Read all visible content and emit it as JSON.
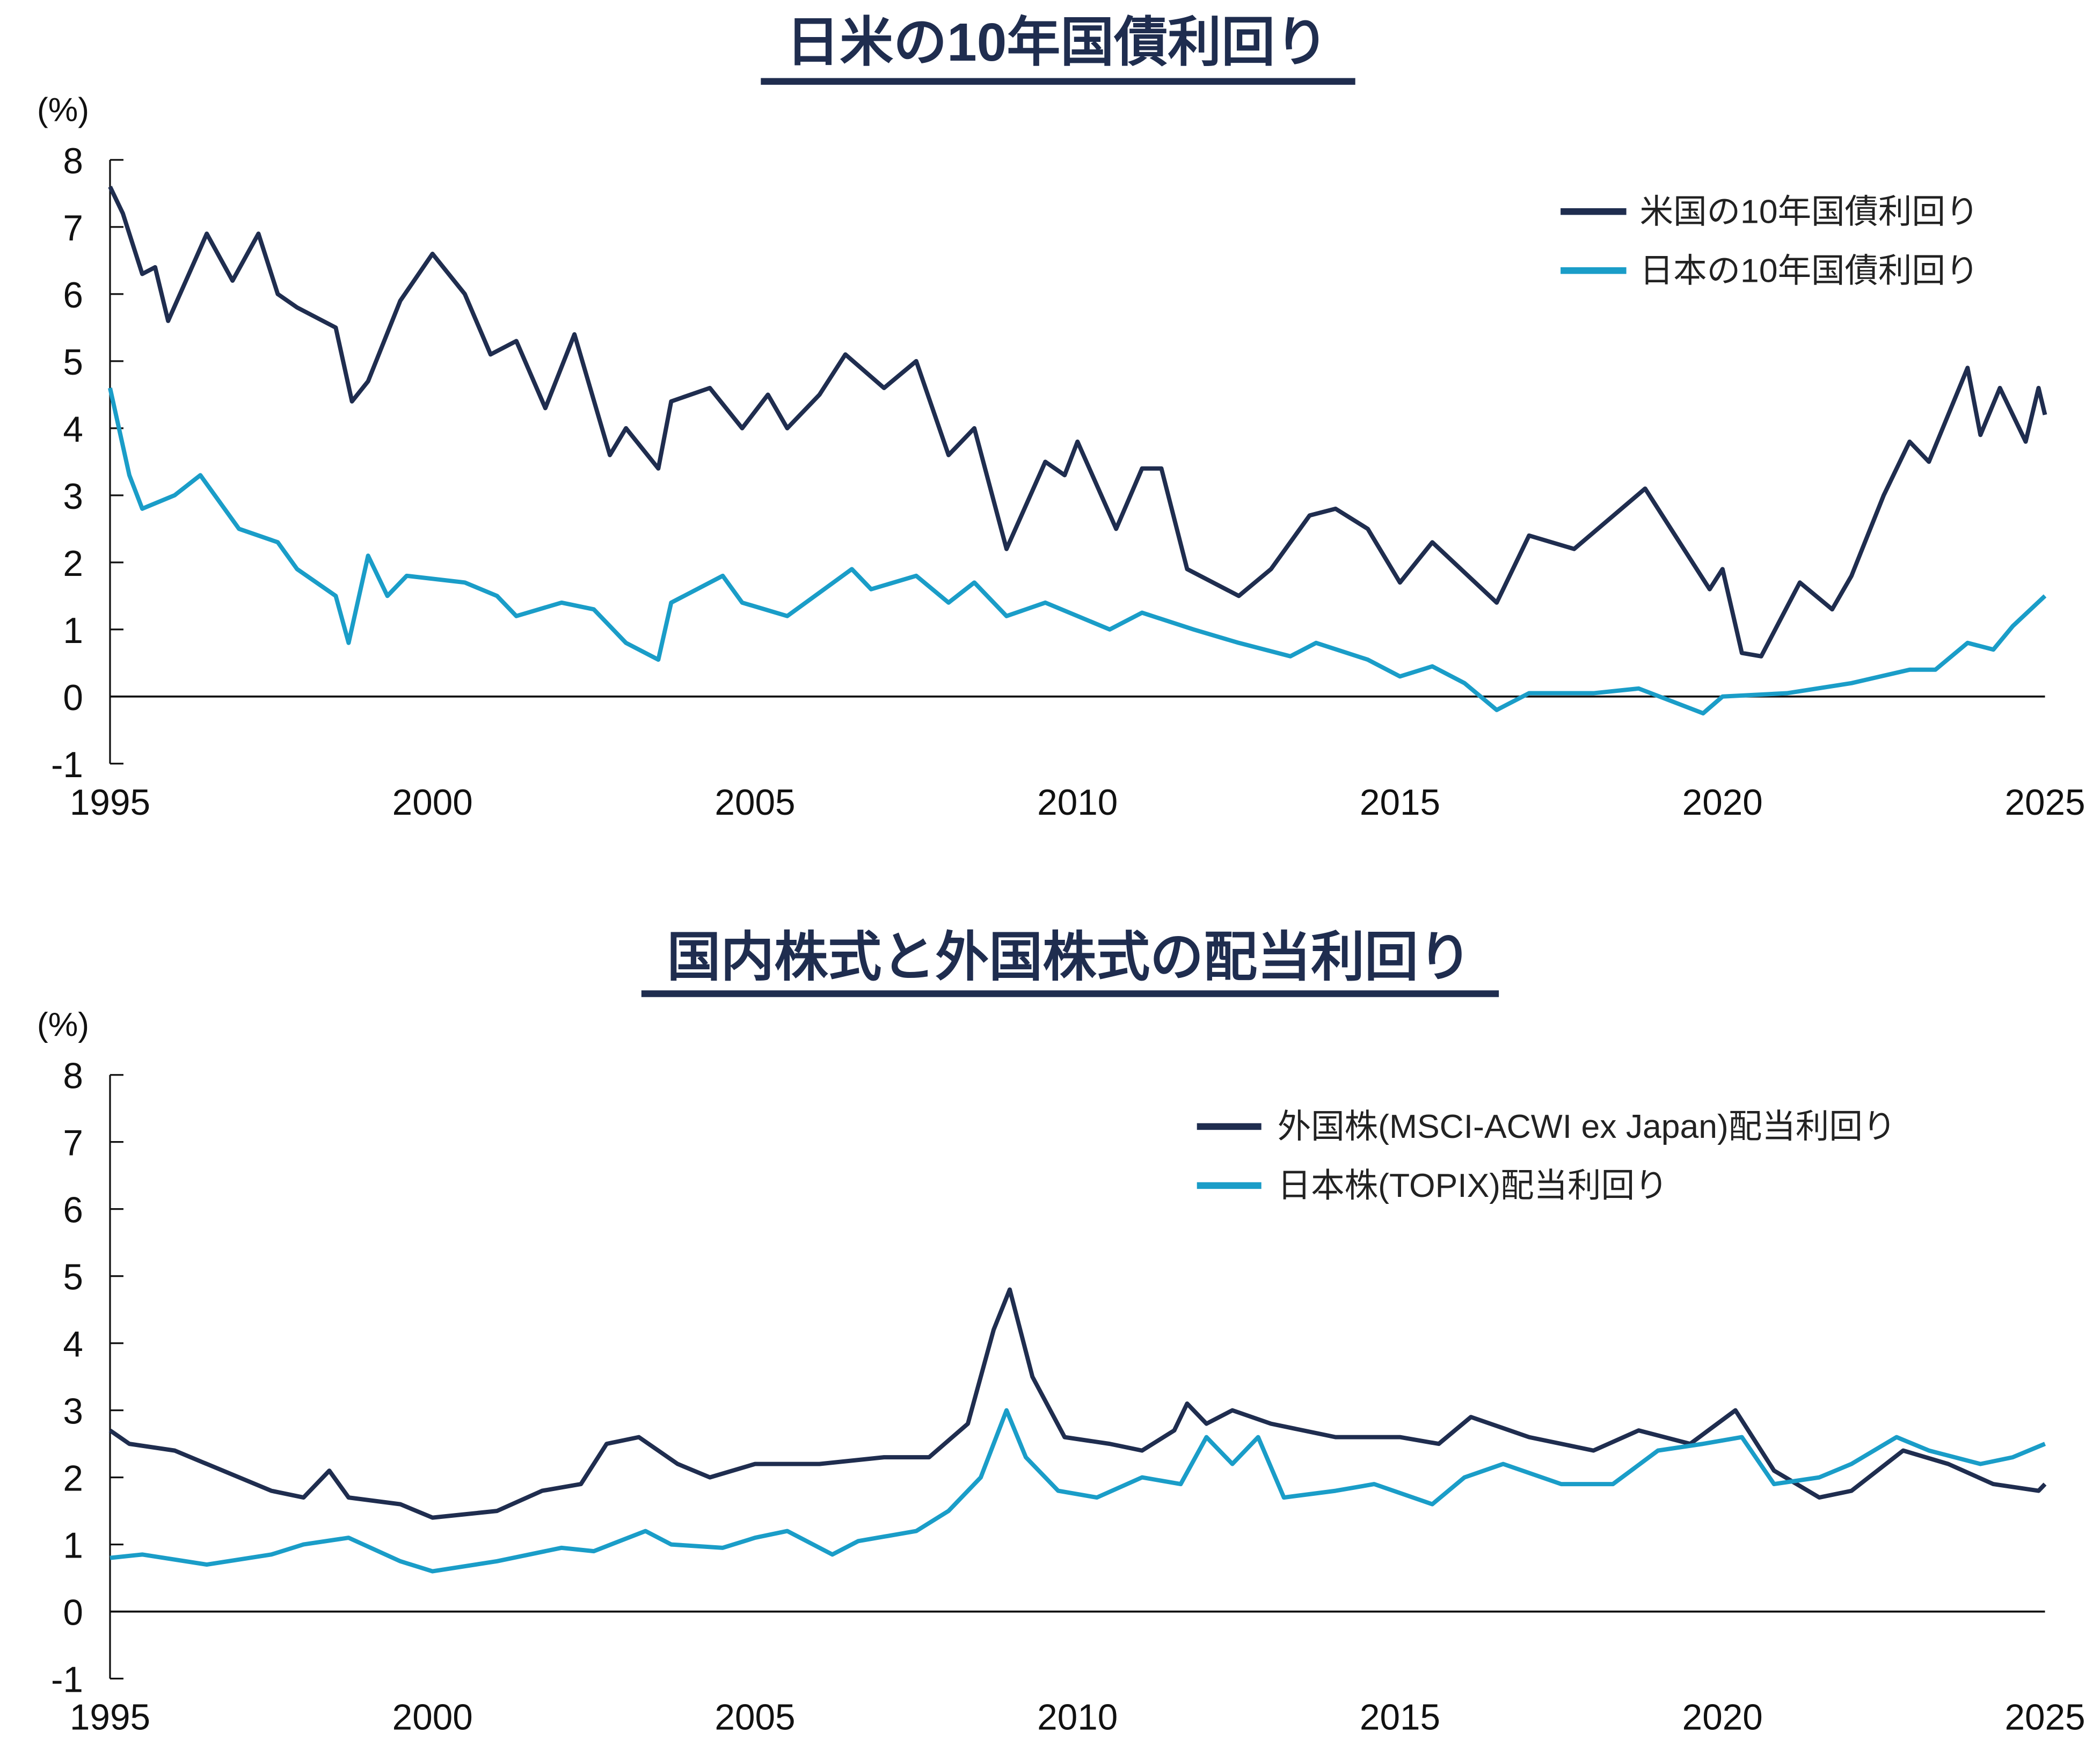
{
  "colors": {
    "us_or_foreign": "#1f2d4f",
    "japan": "#1a9dc8",
    "axis": "#111111"
  },
  "chart_data": [
    {
      "type": "line",
      "title": "日米の10年国債利回り",
      "ylabel": "(%)",
      "xlim": [
        1995,
        2025
      ],
      "ylim": [
        -1,
        8
      ],
      "xticks": [
        "1995",
        "2000",
        "2005",
        "2010",
        "2015",
        "2020",
        "2025"
      ],
      "yticks": [
        "8",
        "7",
        "6",
        "5",
        "4",
        "3",
        "2",
        "1",
        "0",
        "-1"
      ],
      "legend_position": "top-right",
      "series": [
        {
          "name": "米国の10年国債利回り",
          "color": "#1f2d4f",
          "points": [
            [
              1995.0,
              7.6
            ],
            [
              1995.2,
              7.2
            ],
            [
              1995.5,
              6.3
            ],
            [
              1995.7,
              6.4
            ],
            [
              1995.9,
              5.6
            ],
            [
              1996.5,
              6.9
            ],
            [
              1996.9,
              6.2
            ],
            [
              1997.3,
              6.9
            ],
            [
              1997.6,
              6.0
            ],
            [
              1997.9,
              5.8
            ],
            [
              1998.5,
              5.5
            ],
            [
              1998.75,
              4.4
            ],
            [
              1999.0,
              4.7
            ],
            [
              1999.5,
              5.9
            ],
            [
              2000.0,
              6.6
            ],
            [
              2000.5,
              6.0
            ],
            [
              2000.9,
              5.1
            ],
            [
              2001.3,
              5.3
            ],
            [
              2001.75,
              4.3
            ],
            [
              2002.2,
              5.4
            ],
            [
              2002.75,
              3.6
            ],
            [
              2003.0,
              4.0
            ],
            [
              2003.5,
              3.4
            ],
            [
              2003.7,
              4.4
            ],
            [
              2004.3,
              4.6
            ],
            [
              2004.8,
              4.0
            ],
            [
              2005.2,
              4.5
            ],
            [
              2005.5,
              4.0
            ],
            [
              2006.0,
              4.5
            ],
            [
              2006.4,
              5.1
            ],
            [
              2007.0,
              4.6
            ],
            [
              2007.5,
              5.0
            ],
            [
              2008.0,
              3.6
            ],
            [
              2008.4,
              4.0
            ],
            [
              2008.9,
              2.2
            ],
            [
              2009.5,
              3.5
            ],
            [
              2009.8,
              3.3
            ],
            [
              2010.0,
              3.8
            ],
            [
              2010.6,
              2.5
            ],
            [
              2011.0,
              3.4
            ],
            [
              2011.3,
              3.4
            ],
            [
              2011.7,
              1.9
            ],
            [
              2012.5,
              1.5
            ],
            [
              2013.0,
              1.9
            ],
            [
              2013.6,
              2.7
            ],
            [
              2014.0,
              2.8
            ],
            [
              2014.5,
              2.5
            ],
            [
              2015.0,
              1.7
            ],
            [
              2015.5,
              2.3
            ],
            [
              2016.5,
              1.4
            ],
            [
              2017.0,
              2.4
            ],
            [
              2017.7,
              2.2
            ],
            [
              2018.8,
              3.1
            ],
            [
              2019.8,
              1.6
            ],
            [
              2020.0,
              1.9
            ],
            [
              2020.3,
              0.65
            ],
            [
              2020.6,
              0.6
            ],
            [
              2021.2,
              1.7
            ],
            [
              2021.7,
              1.3
            ],
            [
              2022.0,
              1.8
            ],
            [
              2022.5,
              3.0
            ],
            [
              2022.9,
              3.8
            ],
            [
              2023.2,
              3.5
            ],
            [
              2023.8,
              4.9
            ],
            [
              2024.0,
              3.9
            ],
            [
              2024.3,
              4.6
            ],
            [
              2024.7,
              3.8
            ],
            [
              2024.9,
              4.6
            ],
            [
              2025.0,
              4.2
            ]
          ]
        },
        {
          "name": "日本の10年国債利回り",
          "color": "#1a9dc8",
          "points": [
            [
              1995.0,
              4.6
            ],
            [
              1995.3,
              3.3
            ],
            [
              1995.5,
              2.8
            ],
            [
              1996.0,
              3.0
            ],
            [
              1996.4,
              3.3
            ],
            [
              1997.0,
              2.5
            ],
            [
              1997.6,
              2.3
            ],
            [
              1997.9,
              1.9
            ],
            [
              1998.5,
              1.5
            ],
            [
              1998.7,
              0.8
            ],
            [
              1999.0,
              2.1
            ],
            [
              1999.3,
              1.5
            ],
            [
              1999.6,
              1.8
            ],
            [
              2000.5,
              1.7
            ],
            [
              2001.0,
              1.5
            ],
            [
              2001.3,
              1.2
            ],
            [
              2002.0,
              1.4
            ],
            [
              2002.5,
              1.3
            ],
            [
              2003.0,
              0.8
            ],
            [
              2003.5,
              0.55
            ],
            [
              2003.7,
              1.4
            ],
            [
              2004.5,
              1.8
            ],
            [
              2004.8,
              1.4
            ],
            [
              2005.5,
              1.2
            ],
            [
              2006.5,
              1.9
            ],
            [
              2006.8,
              1.6
            ],
            [
              2007.5,
              1.8
            ],
            [
              2008.0,
              1.4
            ],
            [
              2008.4,
              1.7
            ],
            [
              2008.9,
              1.2
            ],
            [
              2009.5,
              1.4
            ],
            [
              2010.5,
              1.0
            ],
            [
              2011.0,
              1.25
            ],
            [
              2011.8,
              1.0
            ],
            [
              2012.5,
              0.8
            ],
            [
              2013.3,
              0.6
            ],
            [
              2013.7,
              0.8
            ],
            [
              2014.5,
              0.55
            ],
            [
              2015.0,
              0.3
            ],
            [
              2015.5,
              0.45
            ],
            [
              2016.0,
              0.2
            ],
            [
              2016.5,
              -0.2
            ],
            [
              2017.0,
              0.05
            ],
            [
              2018.0,
              0.05
            ],
            [
              2018.7,
              0.12
            ],
            [
              2019.7,
              -0.25
            ],
            [
              2020.0,
              0.0
            ],
            [
              2021.0,
              0.05
            ],
            [
              2022.0,
              0.2
            ],
            [
              2022.9,
              0.4
            ],
            [
              2023.3,
              0.4
            ],
            [
              2023.8,
              0.8
            ],
            [
              2024.2,
              0.7
            ],
            [
              2024.5,
              1.05
            ],
            [
              2025.0,
              1.5
            ]
          ]
        }
      ]
    },
    {
      "type": "line",
      "title": "国内株式と外国株式の配当利回り",
      "ylabel": "(%)",
      "xlim": [
        1995,
        2025
      ],
      "ylim": [
        -1,
        8
      ],
      "xticks": [
        "1995",
        "2000",
        "2005",
        "2010",
        "2015",
        "2020",
        "2025"
      ],
      "yticks": [
        "8",
        "7",
        "6",
        "5",
        "4",
        "3",
        "2",
        "1",
        "0",
        "-1"
      ],
      "legend_position": "top-right",
      "series": [
        {
          "name": "外国株(MSCI-ACWI ex Japan)配当利回り",
          "color": "#1f2d4f",
          "points": [
            [
              1995.0,
              2.7
            ],
            [
              1995.3,
              2.5
            ],
            [
              1996.0,
              2.4
            ],
            [
              1996.5,
              2.2
            ],
            [
              1997.5,
              1.8
            ],
            [
              1998.0,
              1.7
            ],
            [
              1998.4,
              2.1
            ],
            [
              1998.7,
              1.7
            ],
            [
              1999.5,
              1.6
            ],
            [
              2000.0,
              1.4
            ],
            [
              2000.5,
              1.45
            ],
            [
              2001.0,
              1.5
            ],
            [
              2001.7,
              1.8
            ],
            [
              2002.3,
              1.9
            ],
            [
              2002.7,
              2.5
            ],
            [
              2003.2,
              2.6
            ],
            [
              2003.8,
              2.2
            ],
            [
              2004.3,
              2.0
            ],
            [
              2005.0,
              2.2
            ],
            [
              2006.0,
              2.2
            ],
            [
              2007.0,
              2.3
            ],
            [
              2007.7,
              2.3
            ],
            [
              2008.3,
              2.8
            ],
            [
              2008.7,
              4.2
            ],
            [
              2008.95,
              4.8
            ],
            [
              2009.3,
              3.5
            ],
            [
              2009.8,
              2.6
            ],
            [
              2010.5,
              2.5
            ],
            [
              2011.0,
              2.4
            ],
            [
              2011.5,
              2.7
            ],
            [
              2011.7,
              3.1
            ],
            [
              2012.0,
              2.8
            ],
            [
              2012.4,
              3.0
            ],
            [
              2013.0,
              2.8
            ],
            [
              2014.0,
              2.6
            ],
            [
              2015.0,
              2.6
            ],
            [
              2015.6,
              2.5
            ],
            [
              2016.1,
              2.9
            ],
            [
              2017.0,
              2.6
            ],
            [
              2018.0,
              2.4
            ],
            [
              2018.7,
              2.7
            ],
            [
              2019.5,
              2.5
            ],
            [
              2020.2,
              3.0
            ],
            [
              2020.8,
              2.1
            ],
            [
              2021.5,
              1.7
            ],
            [
              2022.0,
              1.8
            ],
            [
              2022.8,
              2.4
            ],
            [
              2023.5,
              2.2
            ],
            [
              2024.2,
              1.9
            ],
            [
              2024.9,
              1.8
            ],
            [
              2025.0,
              1.9
            ]
          ]
        },
        {
          "name": "日本株(TOPIX)配当利回り",
          "color": "#1a9dc8",
          "points": [
            [
              1995.0,
              0.8
            ],
            [
              1995.5,
              0.85
            ],
            [
              1996.5,
              0.7
            ],
            [
              1997.5,
              0.85
            ],
            [
              1998.0,
              1.0
            ],
            [
              1998.7,
              1.1
            ],
            [
              1999.5,
              0.75
            ],
            [
              2000.0,
              0.6
            ],
            [
              2001.0,
              0.75
            ],
            [
              2002.0,
              0.95
            ],
            [
              2002.5,
              0.9
            ],
            [
              2003.3,
              1.2
            ],
            [
              2003.7,
              1.0
            ],
            [
              2004.5,
              0.95
            ],
            [
              2005.0,
              1.1
            ],
            [
              2005.5,
              1.2
            ],
            [
              2006.2,
              0.85
            ],
            [
              2006.6,
              1.05
            ],
            [
              2007.5,
              1.2
            ],
            [
              2008.0,
              1.5
            ],
            [
              2008.5,
              2.0
            ],
            [
              2008.9,
              3.0
            ],
            [
              2009.2,
              2.3
            ],
            [
              2009.7,
              1.8
            ],
            [
              2010.3,
              1.7
            ],
            [
              2011.0,
              2.0
            ],
            [
              2011.6,
              1.9
            ],
            [
              2012.0,
              2.6
            ],
            [
              2012.4,
              2.2
            ],
            [
              2012.8,
              2.6
            ],
            [
              2013.2,
              1.7
            ],
            [
              2014.0,
              1.8
            ],
            [
              2014.6,
              1.9
            ],
            [
              2015.5,
              1.6
            ],
            [
              2016.0,
              2.0
            ],
            [
              2016.6,
              2.2
            ],
            [
              2017.5,
              1.9
            ],
            [
              2018.3,
              1.9
            ],
            [
              2019.0,
              2.4
            ],
            [
              2019.7,
              2.5
            ],
            [
              2020.3,
              2.6
            ],
            [
              2020.8,
              1.9
            ],
            [
              2021.5,
              2.0
            ],
            [
              2022.0,
              2.2
            ],
            [
              2022.7,
              2.6
            ],
            [
              2023.2,
              2.4
            ],
            [
              2024.0,
              2.2
            ],
            [
              2024.5,
              2.3
            ],
            [
              2025.0,
              2.5
            ]
          ]
        }
      ]
    }
  ]
}
